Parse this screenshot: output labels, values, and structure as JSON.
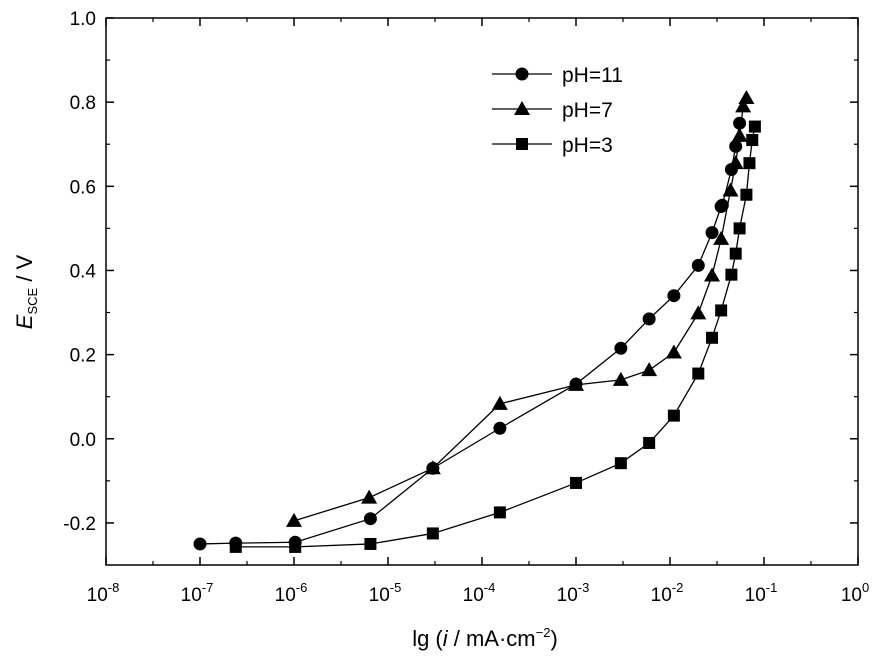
{
  "chart_data": {
    "type": "scatter",
    "title": "",
    "xlabel": {
      "pre": "lg (",
      "italic": "i",
      "post": " / mA·cm",
      "sup": "−2",
      "close": ")"
    },
    "ylabel": {
      "main": "E",
      "sub": "SCE",
      "rest": " / V"
    },
    "x_scale": "log",
    "xlim": [
      1e-08,
      1
    ],
    "ylim": [
      -0.3,
      1.0
    ],
    "x_ticks": [
      {
        "base": "10",
        "exp": "-8",
        "value": 1e-08
      },
      {
        "base": "10",
        "exp": "-7",
        "value": 1e-07
      },
      {
        "base": "10",
        "exp": "-6",
        "value": 1e-06
      },
      {
        "base": "10",
        "exp": "-5",
        "value": 1e-05
      },
      {
        "base": "10",
        "exp": "-4",
        "value": 0.0001
      },
      {
        "base": "10",
        "exp": "-3",
        "value": 0.001
      },
      {
        "base": "10",
        "exp": "-2",
        "value": 0.01
      },
      {
        "base": "10",
        "exp": "-1",
        "value": 0.1
      },
      {
        "base": "10",
        "exp": "0",
        "value": 1
      }
    ],
    "y_ticks": [
      {
        "label": "-0.2",
        "value": -0.2
      },
      {
        "label": "0.0",
        "value": 0.0
      },
      {
        "label": "0.2",
        "value": 0.2
      },
      {
        "label": "0.4",
        "value": 0.4
      },
      {
        "label": "0.6",
        "value": 0.6
      },
      {
        "label": "0.8",
        "value": 0.8
      },
      {
        "label": "1.0",
        "value": 1.0
      }
    ],
    "grid": false,
    "legend_position": "top-right",
    "series": [
      {
        "name": "pH=11",
        "marker": "circle",
        "x": [
          1e-07,
          2.4e-07,
          1.03e-06,
          6.5e-06,
          3e-05,
          0.000155,
          0.001,
          0.003,
          0.006,
          0.011,
          0.02,
          0.028,
          0.035,
          0.036,
          0.045,
          0.05,
          0.055
        ],
        "y": [
          -0.25,
          -0.248,
          -0.246,
          -0.19,
          -0.07,
          0.025,
          0.13,
          0.215,
          0.285,
          0.34,
          0.412,
          0.49,
          0.552,
          0.555,
          0.64,
          0.695,
          0.75
        ]
      },
      {
        "name": "pH=7",
        "marker": "triangle",
        "x": [
          1e-06,
          6.3e-06,
          3e-05,
          0.000155,
          0.001,
          0.003,
          0.006,
          0.011,
          0.02,
          0.028,
          0.035,
          0.044,
          0.05,
          0.055,
          0.06,
          0.065
        ],
        "y": [
          -0.195,
          -0.14,
          -0.07,
          0.083,
          0.128,
          0.14,
          0.163,
          0.205,
          0.298,
          0.388,
          0.475,
          0.59,
          0.655,
          0.72,
          0.79,
          0.81
        ]
      },
      {
        "name": "pH=3",
        "marker": "square",
        "x": [
          2.4e-07,
          1.03e-06,
          6.5e-06,
          3e-05,
          0.000155,
          0.001,
          0.003,
          0.006,
          0.011,
          0.02,
          0.028,
          0.035,
          0.045,
          0.05,
          0.055,
          0.065,
          0.07,
          0.075,
          0.08
        ],
        "y": [
          -0.257,
          -0.257,
          -0.25,
          -0.225,
          -0.175,
          -0.105,
          -0.058,
          -0.01,
          0.055,
          0.155,
          0.24,
          0.305,
          0.39,
          0.44,
          0.5,
          0.58,
          0.655,
          0.71,
          0.742
        ]
      }
    ]
  },
  "colors": {
    "marks": "#000000",
    "axis": "#000000",
    "background": "#ffffff"
  }
}
